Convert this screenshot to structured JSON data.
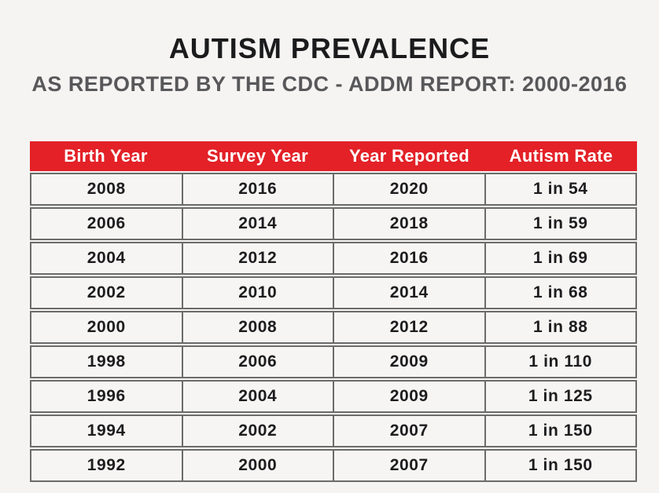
{
  "header": {
    "title": "AUTISM PREVALENCE",
    "subtitle": "AS REPORTED BY THE CDC - ADDM REPORT: 2000-2016"
  },
  "colors": {
    "accent": "#e32127",
    "border": "#6b6b6b",
    "background": "#f5f4f2",
    "title": "#1b1b1d",
    "subtitle": "#58585b",
    "header_text": "#ffffff"
  },
  "table": {
    "columns": [
      "Birth Year",
      "Survey Year",
      "Year Reported",
      "Autism Rate"
    ],
    "rows": [
      [
        "2008",
        "2016",
        "2020",
        "1 in 54"
      ],
      [
        "2006",
        "2014",
        "2018",
        "1 in 59"
      ],
      [
        "2004",
        "2012",
        "2016",
        "1 in 69"
      ],
      [
        "2002",
        "2010",
        "2014",
        "1 in 68"
      ],
      [
        "2000",
        "2008",
        "2012",
        "1 in 88"
      ],
      [
        "1998",
        "2006",
        "2009",
        "1 in 110"
      ],
      [
        "1996",
        "2004",
        "2009",
        "1 in 125"
      ],
      [
        "1994",
        "2002",
        "2007",
        "1 in 150"
      ],
      [
        "1992",
        "2000",
        "2007",
        "1 in 150"
      ]
    ]
  },
  "chart_data": {
    "type": "table",
    "title": "AUTISM PREVALENCE",
    "subtitle": "AS REPORTED BY THE CDC - ADDM REPORT: 2000-2016",
    "columns": [
      "Birth Year",
      "Survey Year",
      "Year Reported",
      "Autism Rate"
    ],
    "rows": [
      {
        "birth_year": 2008,
        "survey_year": 2016,
        "year_reported": 2020,
        "autism_rate": "1 in 54"
      },
      {
        "birth_year": 2006,
        "survey_year": 2014,
        "year_reported": 2018,
        "autism_rate": "1 in 59"
      },
      {
        "birth_year": 2004,
        "survey_year": 2012,
        "year_reported": 2016,
        "autism_rate": "1 in 69"
      },
      {
        "birth_year": 2002,
        "survey_year": 2010,
        "year_reported": 2014,
        "autism_rate": "1 in 68"
      },
      {
        "birth_year": 2000,
        "survey_year": 2008,
        "year_reported": 2012,
        "autism_rate": "1 in 88"
      },
      {
        "birth_year": 1998,
        "survey_year": 2006,
        "year_reported": 2009,
        "autism_rate": "1 in 110"
      },
      {
        "birth_year": 1996,
        "survey_year": 2004,
        "year_reported": 2009,
        "autism_rate": "1 in 125"
      },
      {
        "birth_year": 1994,
        "survey_year": 2002,
        "year_reported": 2007,
        "autism_rate": "1 in 150"
      },
      {
        "birth_year": 1992,
        "survey_year": 2000,
        "year_reported": 2007,
        "autism_rate": "1 in 150"
      }
    ]
  }
}
